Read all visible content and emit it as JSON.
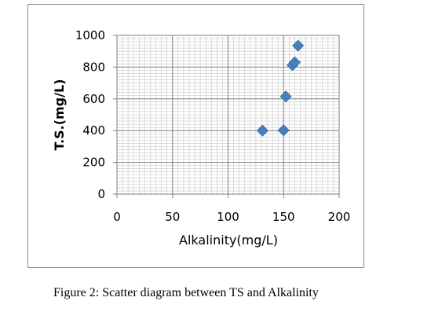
{
  "chart_data": {
    "type": "scatter",
    "title": "",
    "xlabel": "Alkalinity(mg/L)",
    "ylabel": "T.S.(mg/L)",
    "xlim": [
      0,
      200
    ],
    "ylim": [
      0,
      1000
    ],
    "x_ticks": [
      "0",
      "50",
      "100",
      "150",
      "200"
    ],
    "y_ticks": [
      "0",
      "200",
      "400",
      "600",
      "800",
      "1000"
    ],
    "grid": true,
    "legend": "none",
    "marker_color": "#4a7ebb",
    "points": [
      {
        "x": 131,
        "y": 400
      },
      {
        "x": 150,
        "y": 402
      },
      {
        "x": 152,
        "y": 615
      },
      {
        "x": 158,
        "y": 812
      },
      {
        "x": 160,
        "y": 830
      },
      {
        "x": 163,
        "y": 935
      }
    ]
  },
  "caption": "Figure 2: Scatter diagram between TS and Alkalinity"
}
